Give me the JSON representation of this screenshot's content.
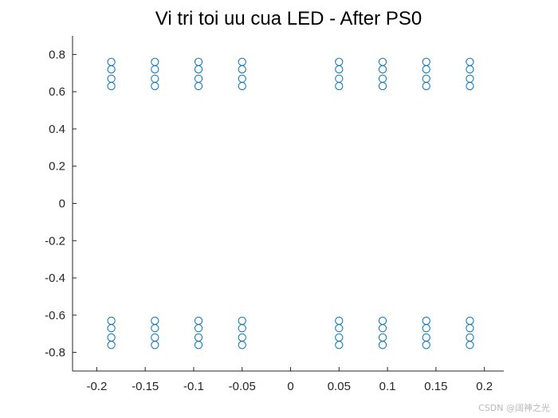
{
  "chart_data": {
    "type": "scatter",
    "title": "Vi tri toi uu cua LED - After PS0",
    "xlabel": "",
    "ylabel": "",
    "xlim": [
      -0.225,
      0.22
    ],
    "ylim": [
      -0.9,
      0.9
    ],
    "x_ticks": [
      -0.2,
      -0.15,
      -0.1,
      -0.05,
      0,
      0.05,
      0.1,
      0.15,
      0.2
    ],
    "x_tick_labels": [
      "-0.2",
      "-0.15",
      "-0.1",
      "-0.05",
      "0",
      "0.05",
      "0.1",
      "0.15",
      "0.2"
    ],
    "y_ticks": [
      0.8,
      0.6,
      0.4,
      0.2,
      0,
      -0.2,
      -0.4,
      -0.6,
      -0.8
    ],
    "y_tick_labels": [
      "0.8",
      "0.6",
      "0.4",
      "0.2",
      "0",
      "-0.2",
      "-0.4",
      "-0.6",
      "-0.8"
    ],
    "grid": false,
    "legend": "none",
    "marker": "open-circle",
    "marker_color": "#0072bd",
    "series": [
      {
        "points": [
          [
            -0.185,
            0.76
          ],
          [
            -0.185,
            0.72
          ],
          [
            -0.185,
            0.67
          ],
          [
            -0.185,
            0.63
          ],
          [
            -0.14,
            0.76
          ],
          [
            -0.14,
            0.72
          ],
          [
            -0.14,
            0.67
          ],
          [
            -0.14,
            0.63
          ],
          [
            -0.095,
            0.76
          ],
          [
            -0.095,
            0.72
          ],
          [
            -0.095,
            0.67
          ],
          [
            -0.095,
            0.63
          ],
          [
            -0.05,
            0.76
          ],
          [
            -0.05,
            0.72
          ],
          [
            -0.05,
            0.67
          ],
          [
            -0.05,
            0.63
          ],
          [
            0.05,
            0.76
          ],
          [
            0.05,
            0.72
          ],
          [
            0.05,
            0.67
          ],
          [
            0.05,
            0.63
          ],
          [
            0.095,
            0.76
          ],
          [
            0.095,
            0.72
          ],
          [
            0.095,
            0.67
          ],
          [
            0.095,
            0.63
          ],
          [
            0.14,
            0.76
          ],
          [
            0.14,
            0.72
          ],
          [
            0.14,
            0.67
          ],
          [
            0.14,
            0.63
          ],
          [
            0.185,
            0.76
          ],
          [
            0.185,
            0.72
          ],
          [
            0.185,
            0.67
          ],
          [
            0.185,
            0.63
          ],
          [
            -0.185,
            -0.63
          ],
          [
            -0.185,
            -0.67
          ],
          [
            -0.185,
            -0.72
          ],
          [
            -0.185,
            -0.76
          ],
          [
            -0.14,
            -0.63
          ],
          [
            -0.14,
            -0.67
          ],
          [
            -0.14,
            -0.72
          ],
          [
            -0.14,
            -0.76
          ],
          [
            -0.095,
            -0.63
          ],
          [
            -0.095,
            -0.67
          ],
          [
            -0.095,
            -0.72
          ],
          [
            -0.095,
            -0.76
          ],
          [
            -0.05,
            -0.63
          ],
          [
            -0.05,
            -0.67
          ],
          [
            -0.05,
            -0.72
          ],
          [
            -0.05,
            -0.76
          ],
          [
            0.05,
            -0.63
          ],
          [
            0.05,
            -0.67
          ],
          [
            0.05,
            -0.72
          ],
          [
            0.05,
            -0.76
          ],
          [
            0.095,
            -0.63
          ],
          [
            0.095,
            -0.67
          ],
          [
            0.095,
            -0.72
          ],
          [
            0.095,
            -0.76
          ],
          [
            0.14,
            -0.63
          ],
          [
            0.14,
            -0.67
          ],
          [
            0.14,
            -0.72
          ],
          [
            0.14,
            -0.76
          ],
          [
            0.185,
            -0.63
          ],
          [
            0.185,
            -0.67
          ],
          [
            0.185,
            -0.72
          ],
          [
            0.185,
            -0.76
          ]
        ]
      }
    ]
  },
  "watermark": {
    "text": "CSDN @阔神之光"
  },
  "colors": {
    "axis": "#262626",
    "marker": "#0072bd",
    "background": "#ffffff"
  }
}
